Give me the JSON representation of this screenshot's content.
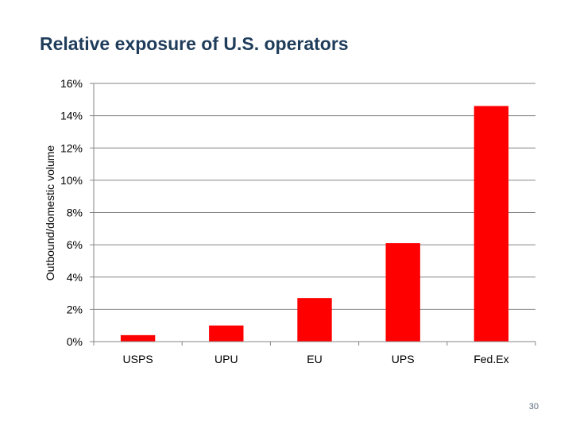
{
  "slide": {
    "title": "Relative exposure of U.S. operators",
    "page_number": "30"
  },
  "colors": {
    "bar": "#ff0000",
    "gridline": "#868686",
    "axis": "#868686",
    "title": "#1f3c5a"
  },
  "chart_data": {
    "type": "bar",
    "title": "Relative exposure of U.S. operators",
    "xlabel": "",
    "ylabel": "Outbound/domestic volume",
    "categories": [
      "USPS",
      "UPU",
      "EU",
      "UPS",
      "Fed.Ex"
    ],
    "values": [
      0.4,
      1.0,
      2.7,
      6.1,
      14.6
    ],
    "value_unit": "%",
    "ylim": [
      0,
      16
    ],
    "yticks": [
      0,
      2,
      4,
      6,
      8,
      10,
      12,
      14,
      16
    ],
    "ytick_labels": [
      "0%",
      "2%",
      "4%",
      "6%",
      "8%",
      "10%",
      "12%",
      "14%",
      "16%"
    ],
    "grid": true,
    "legend": "none"
  }
}
